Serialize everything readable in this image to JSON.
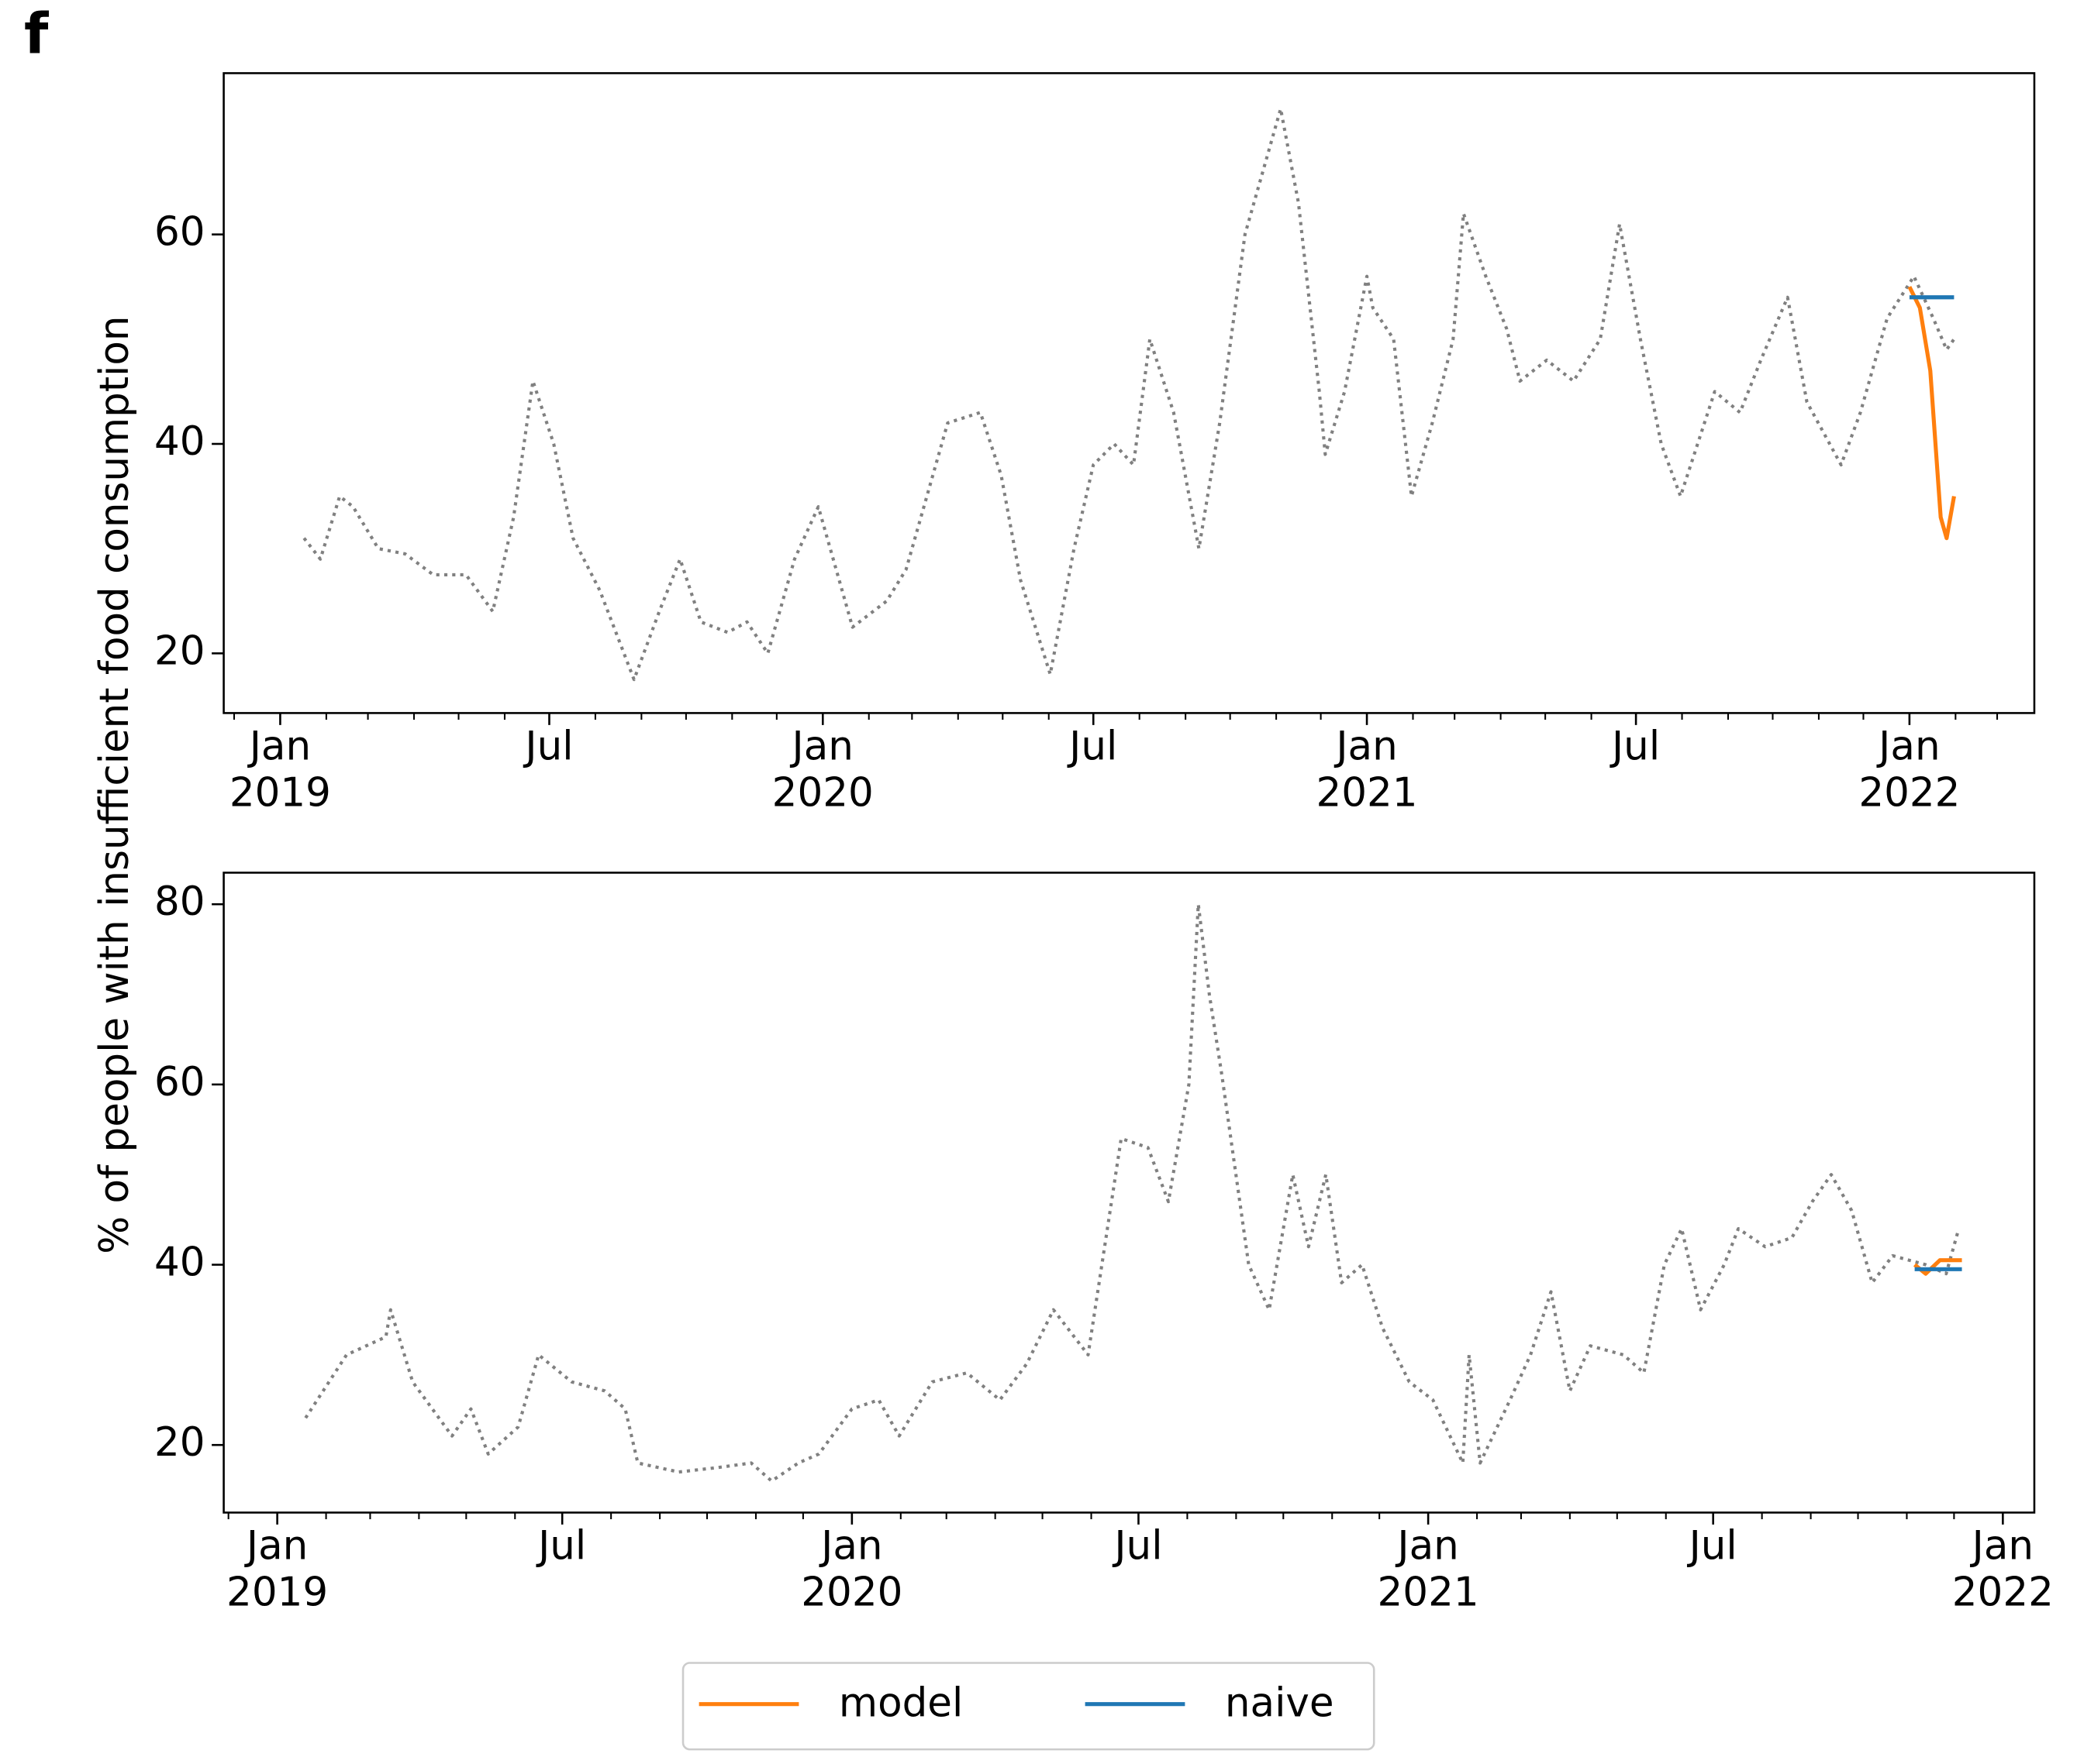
{
  "panel_label": "f",
  "ylabel": "% of people with insufficient food consumption",
  "legend": "below",
  "chart_data": [
    {
      "type": "line",
      "xlim": [
        "2018-11-24",
        "2022-03-26"
      ],
      "xticks": [
        {
          "value": "2019-01-01",
          "label": "Jan\n2019"
        },
        {
          "value": "2019-07-01",
          "label": "Jul"
        },
        {
          "value": "2020-01-01",
          "label": "Jan\n2020"
        },
        {
          "value": "2020-07-01",
          "label": "Jul"
        },
        {
          "value": "2021-01-01",
          "label": "Jan\n2021"
        },
        {
          "value": "2021-07-01",
          "label": "Jul"
        },
        {
          "value": "2022-01-01",
          "label": "Jan\n2022"
        }
      ],
      "ylim": [
        14.3,
        75.4
      ],
      "yticks": [
        20,
        40,
        60
      ],
      "series": [
        {
          "color": "#808080",
          "style": "dotted",
          "x": [
            "2019-01-17",
            "2019-01-28",
            "2019-02-10",
            "2019-02-19",
            "2019-03-08",
            "2019-03-26",
            "2019-04-14",
            "2019-05-06",
            "2019-05-24",
            "2019-06-07",
            "2019-06-20",
            "2019-07-04",
            "2019-07-17",
            "2019-08-04",
            "2019-08-27",
            "2019-09-13",
            "2019-09-27",
            "2019-10-11",
            "2019-10-29",
            "2019-11-11",
            "2019-11-25",
            "2019-12-13",
            "2019-12-29",
            "2020-01-21",
            "2020-02-13",
            "2020-02-26",
            "2020-03-07",
            "2020-03-25",
            "2020-04-16",
            "2020-04-30",
            "2020-05-13",
            "2020-06-02",
            "2020-06-18",
            "2020-07-01",
            "2020-07-15",
            "2020-07-28",
            "2020-08-08",
            "2020-08-24",
            "2020-09-10",
            "2020-09-24",
            "2020-10-11",
            "2020-10-25",
            "2020-11-04",
            "2020-11-16",
            "2020-11-30",
            "2020-12-04",
            "2020-12-17",
            "2021-01-01",
            "2021-01-05",
            "2021-01-19",
            "2021-01-31",
            "2021-02-14",
            "2021-02-28",
            "2021-03-07",
            "2021-03-22",
            "2021-04-05",
            "2021-04-14",
            "2021-05-02",
            "2021-05-20",
            "2021-06-07",
            "2021-06-20",
            "2021-07-04",
            "2021-07-18",
            "2021-07-31",
            "2021-08-23",
            "2021-09-09",
            "2021-09-23",
            "2021-10-11",
            "2021-10-24",
            "2021-11-16",
            "2021-11-29",
            "2021-12-17",
            "2022-01-04",
            "2022-01-17",
            "2022-01-26",
            "2022-01-31"
          ],
          "values": [
            31,
            29,
            35,
            34,
            30,
            29.5,
            27.5,
            27.5,
            24,
            33,
            46,
            40,
            31,
            26,
            17.5,
            24,
            29,
            23,
            22,
            23,
            20,
            29,
            34,
            22.5,
            25,
            28,
            33,
            42,
            43,
            37,
            27,
            18,
            30,
            38,
            40,
            38,
            50,
            43,
            30,
            42,
            60,
            67,
            72,
            63,
            45,
            39,
            45,
            56,
            53,
            50,
            35,
            42,
            50,
            62,
            56,
            51,
            46,
            48,
            46,
            50,
            61,
            50,
            40,
            35,
            45,
            43,
            48,
            54,
            44,
            38,
            43,
            52,
            56,
            52,
            49,
            50
          ]
        },
        {
          "name": "model",
          "color": "#ff7f0e",
          "style": "solid",
          "x": [
            "2022-01-01",
            "2022-01-08",
            "2022-01-15",
            "2022-01-22",
            "2022-01-26",
            "2022-01-31"
          ],
          "values": [
            55,
            53,
            47,
            33,
            31,
            35
          ]
        },
        {
          "name": "naive",
          "color": "#1f77b4",
          "style": "solid",
          "x": [
            "2022-01-01",
            "2022-01-31"
          ],
          "values": [
            54,
            54
          ]
        }
      ]
    },
    {
      "type": "line",
      "xlim": [
        "2018-11-28",
        "2022-01-21"
      ],
      "xticks": [
        {
          "value": "2019-01-01",
          "label": "Jan\n2019"
        },
        {
          "value": "2019-07-01",
          "label": "Jul"
        },
        {
          "value": "2020-01-01",
          "label": "Jan\n2020"
        },
        {
          "value": "2020-07-01",
          "label": "Jul"
        },
        {
          "value": "2021-01-01",
          "label": "Jan\n2021"
        },
        {
          "value": "2021-07-01",
          "label": "Jul"
        },
        {
          "value": "2022-01-01",
          "label": "Jan\n2022"
        }
      ],
      "ylim": [
        12.5,
        83.5
      ],
      "yticks": [
        20,
        40,
        60,
        80
      ],
      "series": [
        {
          "color": "#808080",
          "style": "dotted",
          "x": [
            "2019-01-19",
            "2019-02-14",
            "2019-03-11",
            "2019-03-14",
            "2019-03-28",
            "2019-04-22",
            "2019-05-04",
            "2019-05-15",
            "2019-06-03",
            "2019-06-16",
            "2019-07-07",
            "2019-07-28",
            "2019-08-10",
            "2019-08-18",
            "2019-09-13",
            "2019-10-08",
            "2019-10-29",
            "2019-11-11",
            "2019-11-28",
            "2019-12-11",
            "2020-01-01",
            "2020-01-18",
            "2020-01-31",
            "2020-02-21",
            "2020-03-14",
            "2020-04-04",
            "2020-04-21",
            "2020-05-08",
            "2020-05-30",
            "2020-06-20",
            "2020-07-07",
            "2020-07-20",
            "2020-08-02",
            "2020-08-08",
            "2020-08-15",
            "2020-08-23",
            "2020-09-09",
            "2020-09-22",
            "2020-10-07",
            "2020-10-17",
            "2020-10-28",
            "2020-11-07",
            "2020-11-20",
            "2020-12-03",
            "2020-12-20",
            "2021-01-04",
            "2021-01-23",
            "2021-01-27",
            "2021-02-03",
            "2021-02-22",
            "2021-03-07",
            "2021-03-20",
            "2021-04-01",
            "2021-04-14",
            "2021-05-05",
            "2021-05-18",
            "2021-05-31",
            "2021-06-11",
            "2021-06-23",
            "2021-07-08",
            "2021-07-17",
            "2021-08-03",
            "2021-08-20",
            "2021-09-02",
            "2021-09-14",
            "2021-09-27",
            "2021-10-10",
            "2021-10-23",
            "2021-11-13",
            "2021-11-26",
            "2021-12-04"
          ],
          "values": [
            23,
            30,
            32,
            35,
            27,
            21,
            24,
            19,
            22,
            30,
            27,
            26,
            24,
            18,
            17,
            17.5,
            18,
            16,
            18,
            19,
            24,
            25,
            21,
            27,
            28,
            25,
            29,
            35,
            30,
            54,
            53,
            47,
            60,
            80,
            70,
            61,
            40,
            35,
            50,
            42,
            50,
            38,
            40,
            33,
            27,
            25,
            18,
            30,
            18,
            25,
            30,
            37,
            26,
            31,
            30,
            28,
            40,
            44,
            35,
            40,
            44,
            42,
            43,
            47,
            50,
            46,
            38,
            41,
            40,
            39,
            44
          ]
        },
        {
          "name": "model",
          "color": "#ff7f0e",
          "style": "solid",
          "x": [
            "2021-11-06",
            "2021-11-13",
            "2021-11-22",
            "2021-12-06"
          ],
          "values": [
            40,
            39,
            40.5,
            40.5
          ]
        },
        {
          "name": "naive",
          "color": "#1f77b4",
          "style": "solid",
          "x": [
            "2021-11-06",
            "2021-12-06"
          ],
          "values": [
            39.5,
            39.5
          ]
        }
      ]
    }
  ]
}
